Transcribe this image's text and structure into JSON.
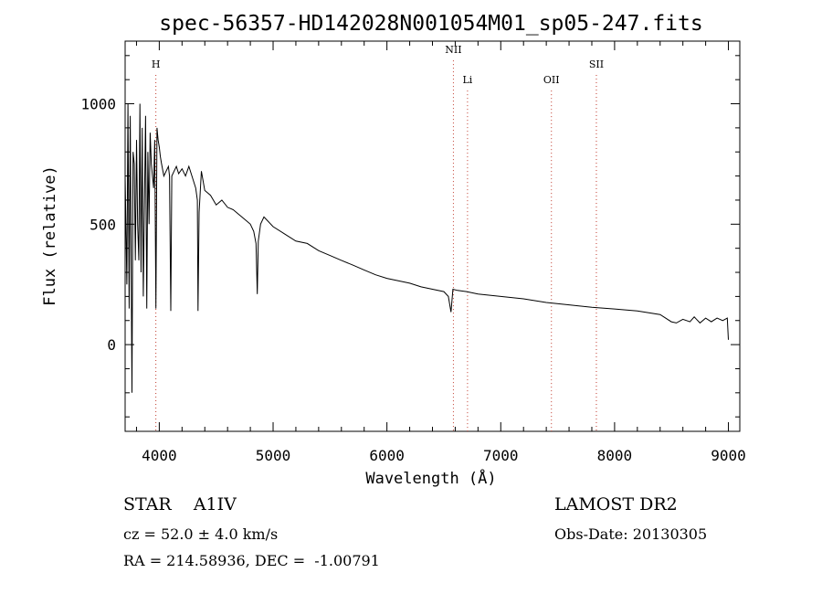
{
  "chart_data": {
    "type": "line",
    "title": "spec-56357-HD142028N001054M01_sp05-247.fits",
    "xlabel": "Wavelength (Å)",
    "ylabel": "Flux (relative)",
    "xlim": [
      3700,
      9100
    ],
    "ylim": [
      -360,
      1260
    ],
    "xticks": [
      "4000",
      "5000",
      "6000",
      "7000",
      "8000",
      "9000"
    ],
    "yticks": [
      "0",
      "500",
      "1000"
    ],
    "series": [
      {
        "x": [
          3700,
          3715,
          3725,
          3735,
          3745,
          3760,
          3770,
          3780,
          3790,
          3800,
          3810,
          3820,
          3830,
          3840,
          3850,
          3860,
          3870,
          3880,
          3890,
          3900,
          3910,
          3920,
          3930,
          3940,
          3950,
          3960,
          3970,
          3980,
          3990,
          4000,
          4010,
          4020,
          4040,
          4060,
          4080,
          4090,
          4101,
          4110,
          4130,
          4150,
          4170,
          4200,
          4230,
          4260,
          4300,
          4320,
          4335,
          4340,
          4350,
          4370,
          4400,
          4450,
          4500,
          4550,
          4600,
          4650,
          4700,
          4750,
          4800,
          4830,
          4850,
          4861,
          4870,
          4890,
          4920,
          5000,
          5100,
          5200,
          5300,
          5400,
          5500,
          5600,
          5700,
          5800,
          5900,
          6000,
          6100,
          6200,
          6300,
          6400,
          6500,
          6540,
          6563,
          6580,
          6620,
          6700,
          6800,
          7000,
          7200,
          7400,
          7600,
          7800,
          8000,
          8200,
          8400,
          8498,
          8542,
          8600,
          8662,
          8700,
          8750,
          8800,
          8850,
          8900,
          8950,
          8990,
          9000
        ],
        "y": [
          700,
          250,
          1000,
          150,
          950,
          -200,
          800,
          750,
          350,
          850,
          500,
          350,
          1000,
          300,
          900,
          200,
          600,
          950,
          150,
          800,
          500,
          880,
          750,
          700,
          650,
          850,
          150,
          900,
          850,
          820,
          780,
          750,
          700,
          720,
          740,
          700,
          140,
          700,
          720,
          740,
          710,
          730,
          700,
          740,
          680,
          650,
          600,
          140,
          550,
          720,
          640,
          620,
          580,
          600,
          570,
          560,
          540,
          520,
          500,
          470,
          420,
          210,
          430,
          500,
          530,
          490,
          460,
          430,
          420,
          390,
          370,
          350,
          330,
          310,
          290,
          275,
          265,
          255,
          240,
          230,
          220,
          200,
          135,
          230,
          225,
          220,
          210,
          200,
          190,
          175,
          165,
          155,
          148,
          140,
          125,
          95,
          90,
          105,
          95,
          115,
          90,
          110,
          95,
          110,
          100,
          110,
          20
        ]
      }
    ],
    "lines": [
      {
        "label": "H",
        "x": 3970,
        "label_y": 1150
      },
      {
        "label": "NII",
        "x": 6584,
        "label_y": 1210
      },
      {
        "label": "Li",
        "x": 6708,
        "label_y": 1085
      },
      {
        "label": "OII",
        "x": 7445,
        "label_y": 1085
      },
      {
        "label": "SII",
        "x": 7840,
        "label_y": 1150
      }
    ]
  },
  "info": {
    "star_line": "STAR    A1IV",
    "survey": "LAMOST DR2",
    "cz": "cz = 52.0 ± 4.0 km/s",
    "obs_date": "Obs-Date: 20130305",
    "radec": "RA = 214.58936, DEC =  -1.00791"
  }
}
